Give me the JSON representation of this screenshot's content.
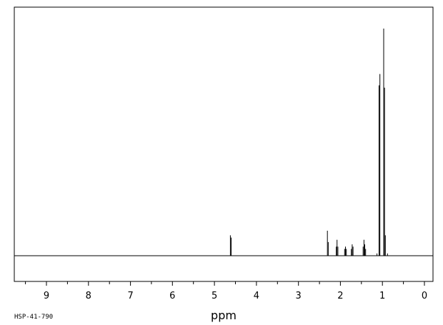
{
  "chart_data": {
    "type": "line",
    "title": "",
    "xlabel": "ppm",
    "ylabel": "",
    "x_reversed": true,
    "xlim": [
      9.8,
      -0.2
    ],
    "ylim": [
      0,
      100
    ],
    "grid": false,
    "ticks": {
      "major": [
        9,
        8,
        7,
        6,
        5,
        4,
        3,
        2,
        1,
        0
      ],
      "major_labels": [
        "9",
        "8",
        "7",
        "6",
        "5",
        "4",
        "3",
        "2",
        "1",
        "0"
      ]
    },
    "peaks": [
      {
        "ppm": 4.62,
        "height": 9
      },
      {
        "ppm": 4.6,
        "height": 8
      },
      {
        "ppm": 2.31,
        "height": 11
      },
      {
        "ppm": 2.29,
        "height": 6
      },
      {
        "ppm": 2.1,
        "height": 4
      },
      {
        "ppm": 2.08,
        "height": 7
      },
      {
        "ppm": 2.06,
        "height": 4
      },
      {
        "ppm": 1.9,
        "height": 3
      },
      {
        "ppm": 1.88,
        "height": 4
      },
      {
        "ppm": 1.86,
        "height": 3
      },
      {
        "ppm": 1.74,
        "height": 3
      },
      {
        "ppm": 1.72,
        "height": 5
      },
      {
        "ppm": 1.7,
        "height": 4
      },
      {
        "ppm": 1.46,
        "height": 4
      },
      {
        "ppm": 1.44,
        "height": 7
      },
      {
        "ppm": 1.42,
        "height": 5
      },
      {
        "ppm": 1.4,
        "height": 3
      },
      {
        "ppm": 1.13,
        "height": 1
      },
      {
        "ppm": 1.08,
        "height": 75
      },
      {
        "ppm": 1.06,
        "height": 80
      },
      {
        "ppm": 0.97,
        "height": 100
      },
      {
        "ppm": 0.95,
        "height": 74
      },
      {
        "ppm": 0.93,
        "height": 9
      },
      {
        "ppm": 0.88,
        "height": 1
      }
    ]
  },
  "footer": {
    "code": "HSP-41-790"
  }
}
